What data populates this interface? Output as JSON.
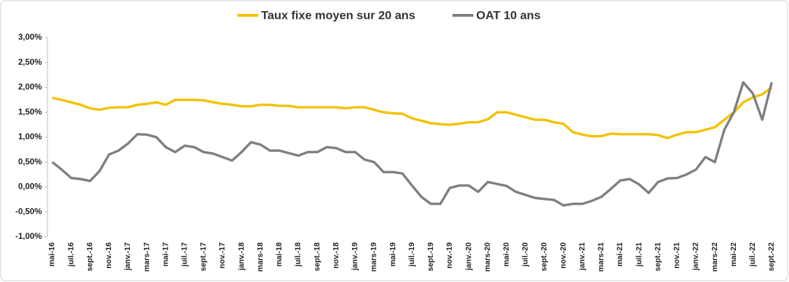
{
  "chart_data": {
    "type": "line",
    "categories": [
      "mai-16",
      null,
      "juil.-16",
      null,
      "sept.-16",
      null,
      "nov.-16",
      null,
      "janv.-17",
      null,
      "mars-17",
      null,
      "mai-17",
      null,
      "juil.-17",
      null,
      "sept.-17",
      null,
      "nov.-17",
      null,
      "janv.-18",
      null,
      "mars-18",
      null,
      "mai-18",
      null,
      "juil.-18",
      null,
      "sept.-18",
      null,
      "nov.-18",
      null,
      "janv.-19",
      null,
      "mars-19",
      null,
      "mai-19",
      null,
      "juil.-19",
      null,
      "sept.-19",
      null,
      "nov.-19",
      null,
      "janv.-20",
      null,
      "mars-20",
      null,
      "mai-20",
      null,
      "juil.-20",
      null,
      "sept.-20",
      null,
      "nov.-20",
      null,
      "janv.-21",
      null,
      "mars-21",
      null,
      "mai-21",
      null,
      "juil.-21",
      null,
      "sept.-21",
      null,
      "nov.-21",
      null,
      "janv.-22",
      null,
      "mars-22",
      null,
      "mai-22",
      null,
      "juil.-22",
      null,
      "sept.-22"
    ],
    "series": [
      {
        "name": "Taux fixe moyen sur 20 ans",
        "color": "#f2c200",
        "values": [
          1.79,
          1.75,
          1.7,
          1.65,
          1.58,
          1.55,
          1.59,
          1.6,
          1.6,
          1.65,
          1.67,
          1.7,
          1.65,
          1.75,
          1.75,
          1.75,
          1.74,
          1.7,
          1.67,
          1.65,
          1.62,
          1.62,
          1.65,
          1.65,
          1.63,
          1.63,
          1.6,
          1.6,
          1.6,
          1.6,
          1.6,
          1.58,
          1.6,
          1.6,
          1.55,
          1.5,
          1.48,
          1.47,
          1.38,
          1.33,
          1.28,
          1.26,
          1.25,
          1.27,
          1.3,
          1.3,
          1.36,
          1.5,
          1.5,
          1.45,
          1.4,
          1.35,
          1.35,
          1.3,
          1.27,
          1.1,
          1.05,
          1.02,
          1.02,
          1.07,
          1.06,
          1.06,
          1.06,
          1.06,
          1.04,
          0.98,
          1.05,
          1.1,
          1.1,
          1.15,
          1.2,
          1.35,
          1.5,
          1.7,
          1.8,
          1.86,
          2.0
        ]
      },
      {
        "name": "OAT 10 ans",
        "color": "#7f7f7f",
        "values": [
          0.5,
          0.35,
          0.18,
          0.16,
          0.12,
          0.32,
          0.65,
          0.73,
          0.87,
          1.06,
          1.05,
          1.0,
          0.8,
          0.7,
          0.83,
          0.8,
          0.7,
          0.67,
          0.6,
          0.53,
          0.7,
          0.9,
          0.85,
          0.73,
          0.73,
          0.68,
          0.63,
          0.7,
          0.7,
          0.8,
          0.78,
          0.7,
          0.7,
          0.55,
          0.5,
          0.3,
          0.3,
          0.27,
          0.03,
          -0.2,
          -0.34,
          -0.34,
          -0.02,
          0.03,
          0.03,
          -0.1,
          0.1,
          0.06,
          0.02,
          -0.1,
          -0.16,
          -0.22,
          -0.24,
          -0.26,
          -0.37,
          -0.34,
          -0.34,
          -0.28,
          -0.2,
          -0.04,
          0.13,
          0.16,
          0.05,
          -0.12,
          0.1,
          0.17,
          0.18,
          0.25,
          0.35,
          0.6,
          0.5,
          1.15,
          1.5,
          2.1,
          1.88,
          1.35,
          2.1
        ]
      }
    ],
    "ylim": [
      -1,
      3
    ],
    "yticks": [
      {
        "value": -1,
        "label": "-1,00%"
      },
      {
        "value": -0.5,
        "label": "-0,50%"
      },
      {
        "value": 0,
        "label": "0,00%"
      },
      {
        "value": 0.5,
        "label": "0,50%"
      },
      {
        "value": 1,
        "label": "1,00%"
      },
      {
        "value": 1.5,
        "label": "1,50%"
      },
      {
        "value": 2,
        "label": "2,00%"
      },
      {
        "value": 2.5,
        "label": "2,50%"
      },
      {
        "value": 3,
        "label": "3,00%"
      }
    ],
    "grid": false
  }
}
